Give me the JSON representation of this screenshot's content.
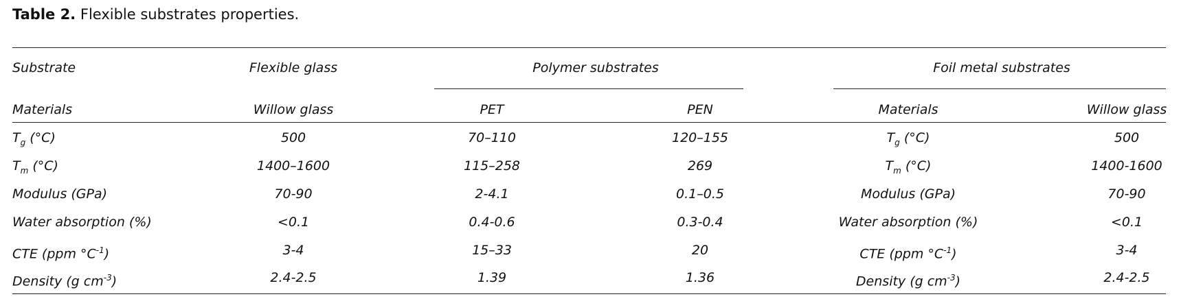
{
  "caption": {
    "label": "Table 2.",
    "text": "Flexible substrates properties."
  },
  "table": {
    "header_top": [
      "Substrate",
      "Flexible glass",
      "Polymer substrates",
      "Foil metal substrates"
    ],
    "header_sub": [
      "Materials",
      "Willow glass",
      "PET",
      "PEN",
      "Materials",
      "Willow glass"
    ],
    "rows": [
      [
        [
          {
            "t": "T"
          },
          {
            "sub": "g"
          },
          {
            "t": " (°C)"
          }
        ],
        "500",
        "70–110",
        "120–155",
        [
          {
            "t": "T"
          },
          {
            "sub": "g"
          },
          {
            "t": " (°C)"
          }
        ],
        "500"
      ],
      [
        [
          {
            "t": "T"
          },
          {
            "sub": "m"
          },
          {
            "t": " (°C)"
          }
        ],
        "1400–1600",
        "115–258",
        "269",
        [
          {
            "t": "T"
          },
          {
            "sub": "m"
          },
          {
            "t": " (°C)"
          }
        ],
        "1400-1600"
      ],
      [
        "Modulus (GPa)",
        "70-90",
        "2-4.1",
        "0.1–0.5",
        "Modulus (GPa)",
        "70-90"
      ],
      [
        "Water absorption (%)",
        "<0.1",
        "0.4-0.6",
        "0.3-0.4",
        "Water absorption (%)",
        "<0.1"
      ],
      [
        [
          {
            "t": "CTE (ppm °C"
          },
          {
            "sup": "-1"
          },
          {
            "t": ")"
          }
        ],
        "3-4",
        "15–33",
        "20",
        [
          {
            "t": "CTE (ppm °C"
          },
          {
            "sup": "-1"
          },
          {
            "t": ")"
          }
        ],
        "3-4"
      ],
      [
        [
          {
            "t": "Density (g cm"
          },
          {
            "sup": "-3"
          },
          {
            "t": ")"
          }
        ],
        "2.4-2.5",
        "1.39",
        "1.36",
        [
          {
            "t": "Density (g cm"
          },
          {
            "sup": "-3"
          },
          {
            "t": ")"
          }
        ],
        "2.4-2.5"
      ]
    ]
  }
}
